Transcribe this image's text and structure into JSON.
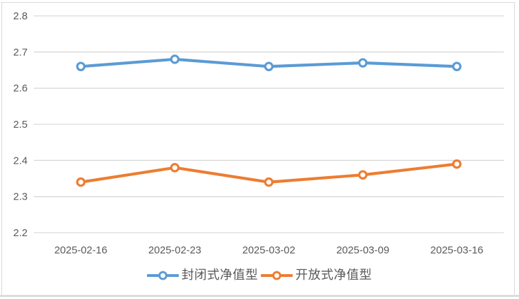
{
  "chart_data": {
    "type": "line",
    "title": "",
    "xlabel": "",
    "ylabel": "",
    "categories": [
      "2025-02-16",
      "2025-02-23",
      "2025-03-02",
      "2025-03-09",
      "2025-03-16"
    ],
    "series": [
      {
        "name": "封闭式净值型",
        "color": "#5B9BD5",
        "marker": "open-circle",
        "values": [
          2.66,
          2.68,
          2.66,
          2.67,
          2.66
        ]
      },
      {
        "name": "开放式净值型",
        "color": "#ED7D31",
        "marker": "open-circle",
        "values": [
          2.34,
          2.38,
          2.34,
          2.36,
          2.39
        ]
      }
    ],
    "ylim": [
      2.2,
      2.8
    ],
    "ytick_step": 0.1,
    "yticks": [
      "2.8",
      "2.7",
      "2.6",
      "2.5",
      "2.4",
      "2.3",
      "2.2"
    ],
    "grid": "horizontal",
    "legend_position": "bottom"
  },
  "style": {
    "grid_color": "#D9D9D9",
    "axis_text_color": "#595959",
    "frame_border_color": "#D9D9D9",
    "background": "#FFFFFF"
  }
}
